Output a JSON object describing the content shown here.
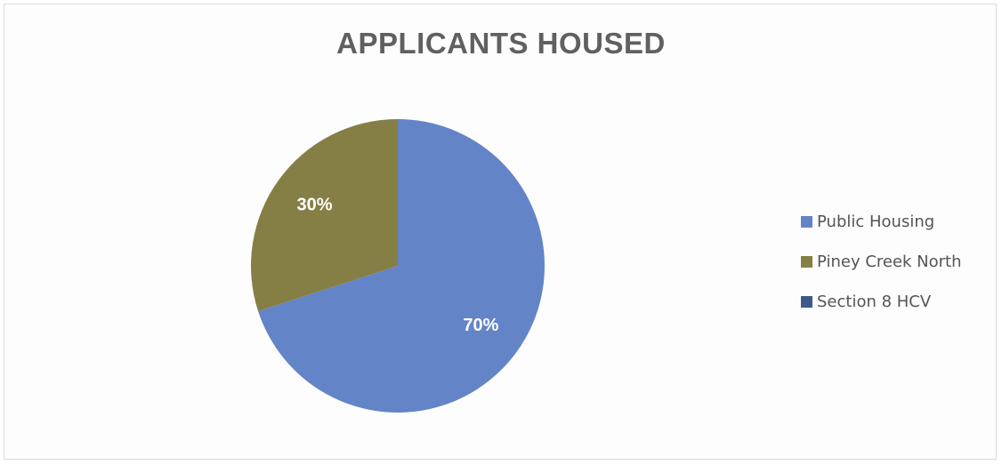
{
  "chart_data": {
    "type": "pie",
    "title": "APPLICANTS HOUSED",
    "categories": [
      "Public Housing",
      "Piney Creek North",
      "Section 8 HCV"
    ],
    "values": [
      70,
      30,
      0
    ],
    "value_labels": [
      "70%",
      "30%",
      ""
    ],
    "colors": [
      "#6484c8",
      "#857f45",
      "#3d5a8a"
    ],
    "legend_position": "right"
  }
}
